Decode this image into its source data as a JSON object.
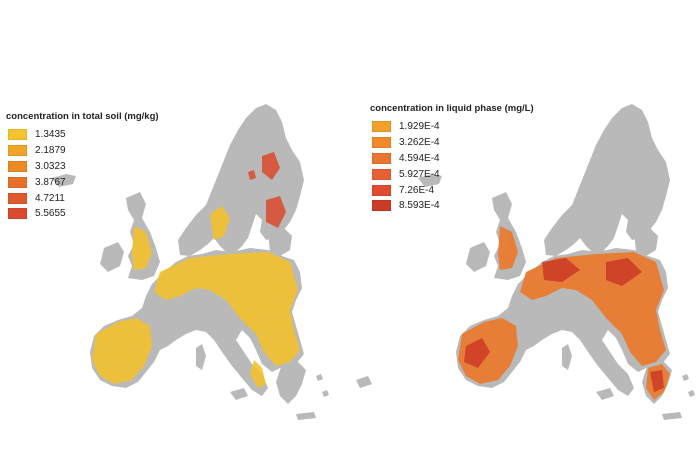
{
  "maps": [
    {
      "legend_title": "concentration in total soil (mg/kg)",
      "classes": [
        {
          "label": "1.3435",
          "color": "#f5c330"
        },
        {
          "label": "2.1879",
          "color": "#f0a428"
        },
        {
          "label": "3.0323",
          "color": "#ec8a24"
        },
        {
          "label": "3.8767",
          "color": "#e6702a"
        },
        {
          "label": "4.7211",
          "color": "#e05a2c"
        },
        {
          "label": "5.5655",
          "color": "#db4a30"
        }
      ]
    },
    {
      "legend_title": "concentration in liquid phase (mg/L)",
      "classes": [
        {
          "label": "1.929E-4",
          "color": "#f2a12a"
        },
        {
          "label": "3.262E-4",
          "color": "#ee8a2a"
        },
        {
          "label": "4.594E-4",
          "color": "#ea7630"
        },
        {
          "label": "5.927E-4",
          "color": "#e66034"
        },
        {
          "label": "7.26E-4",
          "color": "#e04c30"
        },
        {
          "label": "8.593E-4",
          "color": "#cc3a28"
        }
      ]
    }
  ],
  "land_color": "#b9b9b9",
  "background_color": "#ffffff"
}
